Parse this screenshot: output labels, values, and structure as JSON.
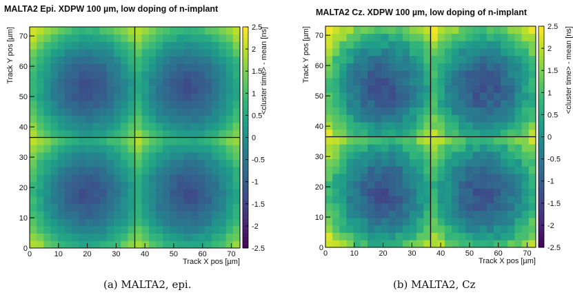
{
  "chart_data": [
    {
      "type": "heatmap",
      "title": "MALTA2 Epi. XDPW 100 µm, low doping of n-implant",
      "xlabel": "Track X pos [µm]",
      "ylabel": "Track Y pos [µm]",
      "zlabel": "<cluster time> - mean [ns]",
      "xlim": [
        0,
        73
      ],
      "ylim": [
        0,
        73
      ],
      "zlim": [
        -2.5,
        2.5
      ],
      "x_ticks": [
        0,
        10,
        20,
        30,
        40,
        50,
        60,
        70
      ],
      "y_ticks": [
        0,
        10,
        20,
        30,
        40,
        50,
        60,
        70
      ],
      "z_ticks": [
        -2.5,
        -2,
        -1.5,
        -1,
        -0.5,
        0,
        0.5,
        1,
        1.5,
        2,
        2.5
      ],
      "bins": [
        30,
        30
      ],
      "pixel_divider": {
        "x": 36.5,
        "y": 36.5
      },
      "minima_centers": [
        [
          20,
          18
        ],
        [
          55,
          18
        ],
        [
          20,
          53
        ],
        [
          55,
          53
        ]
      ],
      "value_range": [
        -1.3,
        2.0
      ],
      "colormap": "viridis",
      "caption": "(a) MALTA2, epi."
    },
    {
      "type": "heatmap",
      "title": "MALTA2 Cz. XDPW 100 µm, low doping of n-implant",
      "xlabel": "Track X pos [µm]",
      "ylabel": "Track Y pos [µm]",
      "zlabel": "<cluster time> - mean [ns]",
      "xlim": [
        0,
        73
      ],
      "ylim": [
        0,
        73
      ],
      "zlim": [
        -2.5,
        2.5
      ],
      "x_ticks": [
        0,
        10,
        20,
        30,
        40,
        50,
        60,
        70
      ],
      "y_ticks": [
        0,
        10,
        20,
        30,
        40,
        50,
        60,
        70
      ],
      "z_ticks": [
        -2.5,
        -2,
        -1.5,
        -1,
        -0.5,
        0,
        0.5,
        1,
        1.5,
        2,
        2.5
      ],
      "bins": [
        30,
        30
      ],
      "pixel_divider": {
        "x": 36.5,
        "y": 36.5
      },
      "minima_centers": [
        [
          20,
          18
        ],
        [
          55,
          18
        ],
        [
          20,
          53
        ],
        [
          55,
          53
        ]
      ],
      "value_range": [
        -1.3,
        2.3
      ],
      "colormap": "viridis",
      "caption": "(b) MALTA2, Cz"
    }
  ]
}
